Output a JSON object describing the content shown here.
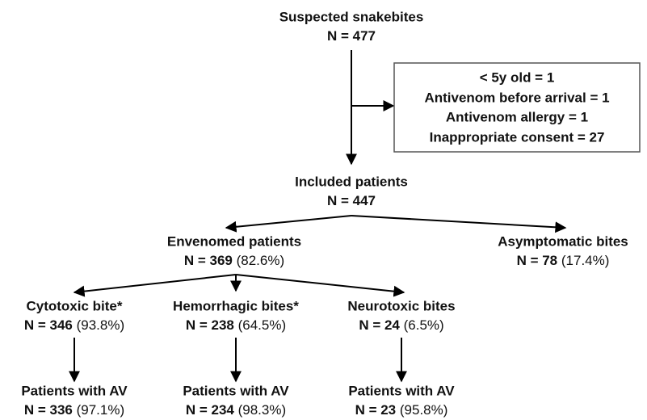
{
  "nodes": [
    {
      "title": "Suspected snakebites",
      "count": "N = 477"
    },
    {
      "title": "Included patients",
      "count": "N = 447"
    },
    {
      "title": "Envenomed patients",
      "count": "N = 369",
      "percent": "(82.6%)"
    },
    {
      "title": "Asymptomatic bites",
      "count": "N = 78",
      "percent": "(17.4%)"
    },
    {
      "title": "Cytotoxic bite*",
      "count": "N = 346",
      "percent": "(93.8%)"
    },
    {
      "title": "Hemorrhagic bites*",
      "count": "N = 238",
      "percent": "(64.5%)"
    },
    {
      "title": "Neurotoxic bites",
      "count": "N = 24",
      "percent": "(6.5%)"
    },
    {
      "title": "Patients with AV",
      "count": "N = 336",
      "percent": "(97.1%)"
    },
    {
      "title": "Patients with AV",
      "count": "N = 234",
      "percent": "(98.3%)"
    },
    {
      "title": "Patients with AV",
      "count": "N = 23",
      "percent": "(95.8%)"
    }
  ],
  "exclusions": [
    "< 5y old = 1",
    "Antivenom before arrival = 1",
    "Antivenom allergy = 1",
    "Inappropriate consent = 27"
  ]
}
